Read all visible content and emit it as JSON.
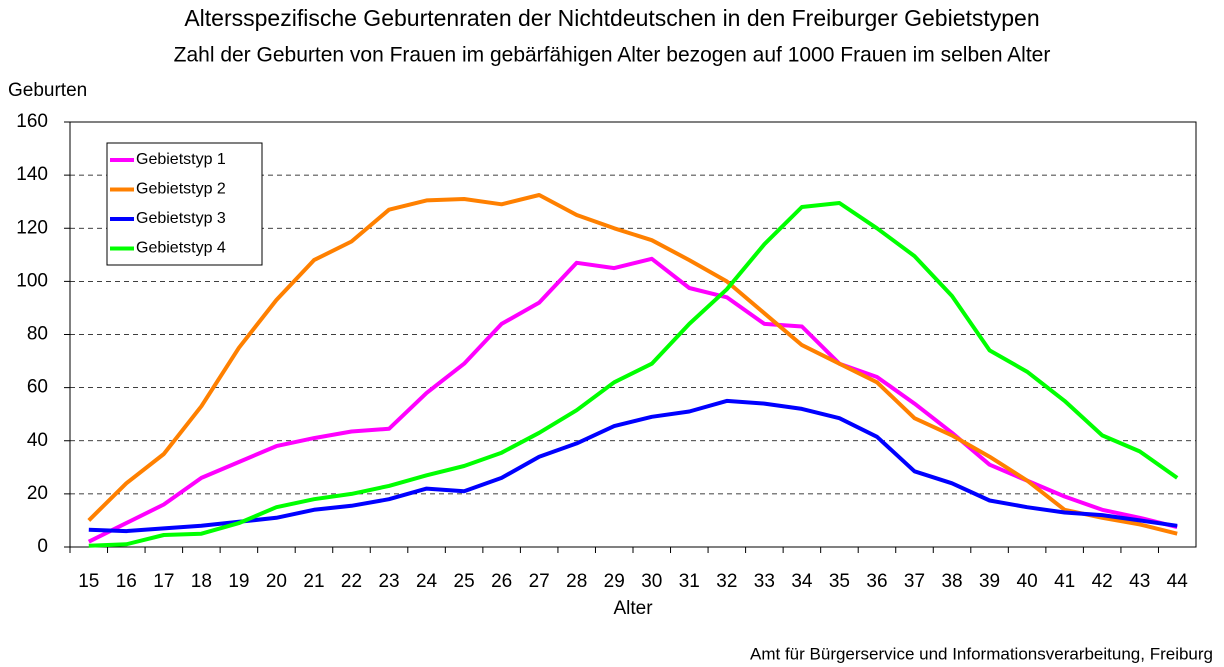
{
  "chart_data": {
    "type": "line",
    "title": "Altersspezifische Geburtenraten der Nichtdeutschen in den Freiburger Gebietstypen",
    "subtitle": "Zahl der Geburten von Frauen im gebärfähigen Alter bezogen auf 1000 Frauen im selben Alter",
    "y_label": "Geburten",
    "x_label": "Alter",
    "source": "Amt für Bürgerservice und Informationsverarbeitung, Freiburg",
    "categories": [
      "15",
      "16",
      "17",
      "18",
      "19",
      "20",
      "21",
      "22",
      "23",
      "24",
      "25",
      "26",
      "27",
      "28",
      "29",
      "30",
      "31",
      "32",
      "33",
      "34",
      "35",
      "36",
      "37",
      "38",
      "39",
      "40",
      "41",
      "42",
      "43",
      "44"
    ],
    "series": [
      {
        "name": "Gebietstyp 1",
        "color": "#ff00ff",
        "values": [
          2,
          9,
          16,
          26,
          32,
          38,
          41,
          43.5,
          44.5,
          58,
          69,
          84,
          92,
          107,
          105,
          108.5,
          97.5,
          94,
          84,
          83,
          69,
          64,
          54,
          43,
          31,
          25,
          19,
          14,
          11,
          7.5
        ]
      },
      {
        "name": "Gebietstyp 2",
        "color": "#ff8000",
        "values": [
          10,
          24,
          35,
          53,
          75,
          93,
          108,
          115,
          127,
          130.5,
          131,
          129,
          132.5,
          125,
          120,
          115.5,
          108,
          100,
          88,
          76,
          69,
          62,
          48.5,
          42,
          34,
          25,
          14,
          11,
          8.5,
          5
        ]
      },
      {
        "name": "Gebietstyp 3",
        "color": "#0000ff",
        "values": [
          6.5,
          6,
          7,
          8,
          9.5,
          11,
          14,
          15.5,
          18,
          22,
          21,
          26,
          34,
          39,
          45.5,
          49,
          51,
          55,
          54,
          52,
          48.5,
          41.5,
          28.5,
          24,
          17.5,
          15,
          13,
          12,
          10,
          8
        ]
      },
      {
        "name": "Gebietstyp 4",
        "color": "#00ff00",
        "values": [
          0.5,
          1,
          4.5,
          5,
          9,
          15,
          18,
          20,
          23,
          27,
          30.5,
          35.5,
          43,
          51.5,
          62,
          69,
          84,
          97,
          114,
          128,
          129.5,
          120,
          109.5,
          94.5,
          74,
          66,
          55,
          42,
          36,
          26
        ]
      }
    ],
    "ylim": [
      0,
      160
    ],
    "yticks": [
      0,
      20,
      40,
      60,
      80,
      100,
      120,
      140,
      160
    ],
    "grid": true,
    "legend": "upper left"
  }
}
